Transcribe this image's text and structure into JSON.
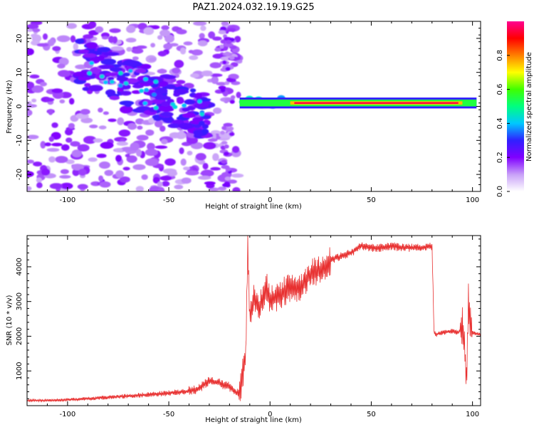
{
  "title": "PAZ1.2024.032.19.19.G25",
  "chart_data": [
    {
      "type": "heatmap",
      "xlabel": "Height of straight line (km)",
      "ylabel": "Frequency (Hz)",
      "xlim": [
        -120,
        104
      ],
      "ylim": [
        -25,
        25
      ],
      "xticks": [
        "-100",
        "-50",
        "0",
        "50",
        "100"
      ],
      "xtick_values": [
        -100,
        -50,
        0,
        50,
        100
      ],
      "yticks": [
        "-20",
        "-10",
        "0",
        "10",
        "20"
      ],
      "ytick_values": [
        -20,
        -10,
        0,
        10,
        20
      ],
      "colorbar": {
        "label": "Normalized spectral amplitude",
        "range": [
          0,
          1
        ],
        "ticks": [
          "0.0",
          "0.2",
          "0.4",
          "0.6",
          "0.8"
        ],
        "tick_values": [
          0,
          0.2,
          0.4,
          0.6,
          0.8
        ],
        "colormap": [
          "#ffffff",
          "#c8a0f8",
          "#8000ff",
          "#3020ff",
          "#00c8ff",
          "#00ff80",
          "#40ff00",
          "#ffff00",
          "#ff8000",
          "#ff0000",
          "#ff0090"
        ]
      },
      "features": {
        "main_band": {
          "x": [
            -15,
            102
          ],
          "y": 1,
          "level": 0.95
        },
        "band_halo_level": 0.55,
        "diagonal_streak": {
          "x": [
            -95,
            -30
          ],
          "y_start": 13,
          "y_end": -3
        }
      }
    },
    {
      "type": "line",
      "xlabel": "Height of straight line (km)",
      "ylabel": "SNR (10 * v/v)",
      "xlim": [
        -120,
        104
      ],
      "ylim": [
        0,
        4900
      ],
      "xticks": [
        "-100",
        "-50",
        "0",
        "50",
        "100"
      ],
      "xtick_values": [
        -100,
        -50,
        0,
        50,
        100
      ],
      "yticks": [
        "1000",
        "2000",
        "3000",
        "4000"
      ],
      "ytick_values": [
        1000,
        2000,
        3000,
        4000
      ],
      "series_color": "#e83030",
      "x": [
        -120,
        -110,
        -100,
        -90,
        -80,
        -70,
        -60,
        -50,
        -40,
        -35,
        -30,
        -25,
        -20,
        -15,
        -12,
        -11,
        -10,
        -8,
        -5,
        -2,
        0,
        5,
        10,
        15,
        20,
        25,
        30,
        35,
        40,
        45,
        50,
        55,
        60,
        65,
        70,
        75,
        80,
        81,
        82,
        85,
        90,
        93,
        95,
        96,
        97,
        98,
        99,
        100,
        104
      ],
      "y": [
        150,
        150,
        170,
        200,
        240,
        280,
        320,
        360,
        420,
        500,
        700,
        650,
        550,
        300,
        1500,
        4500,
        2500,
        3100,
        2800,
        3500,
        3000,
        3200,
        3400,
        3400,
        3800,
        3900,
        4200,
        4300,
        4400,
        4600,
        4550,
        4550,
        4600,
        4550,
        4550,
        4550,
        4600,
        2100,
        2050,
        2100,
        2150,
        2100,
        2300,
        1800,
        600,
        3100,
        2300,
        2100,
        2050
      ]
    }
  ]
}
